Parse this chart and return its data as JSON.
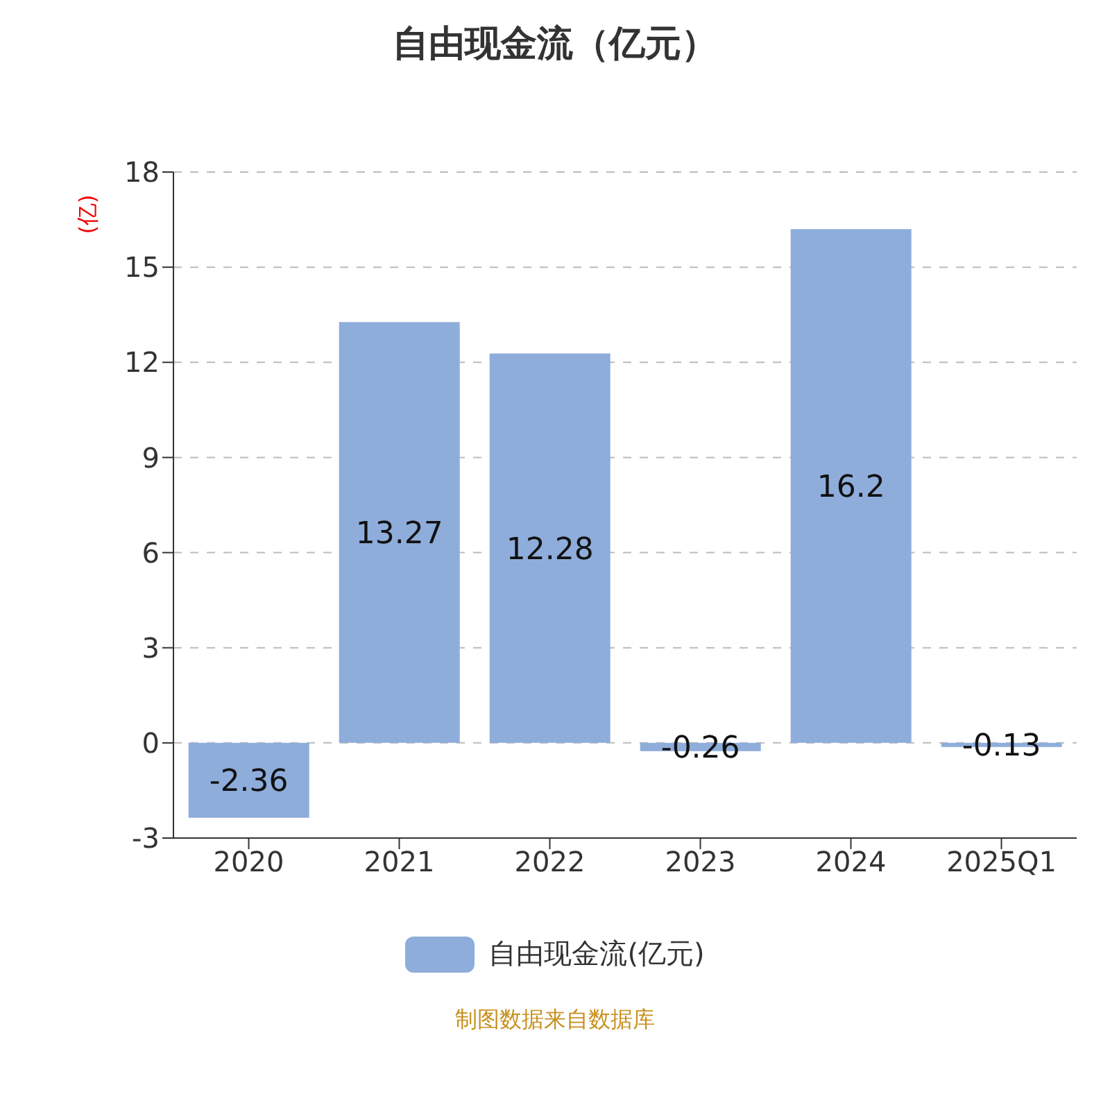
{
  "chart_data": {
    "type": "bar",
    "title": "自由现金流（亿元）",
    "ylabel": "(亿)",
    "categories": [
      "2020",
      "2021",
      "2022",
      "2023",
      "2024",
      "2025Q1"
    ],
    "series": [
      {
        "name": "自由现金流(亿元)",
        "color": "#8eaddb",
        "values": [
          -2.36,
          13.27,
          12.28,
          -0.26,
          16.2,
          -0.13
        ]
      }
    ],
    "ylim": [
      -3,
      18
    ],
    "yticks": [
      -3,
      0,
      3,
      6,
      9,
      12,
      15,
      18
    ],
    "grid": "y",
    "legend": "bottom",
    "data_labels": true,
    "annotations": [
      "制图数据来自数据库"
    ]
  }
}
